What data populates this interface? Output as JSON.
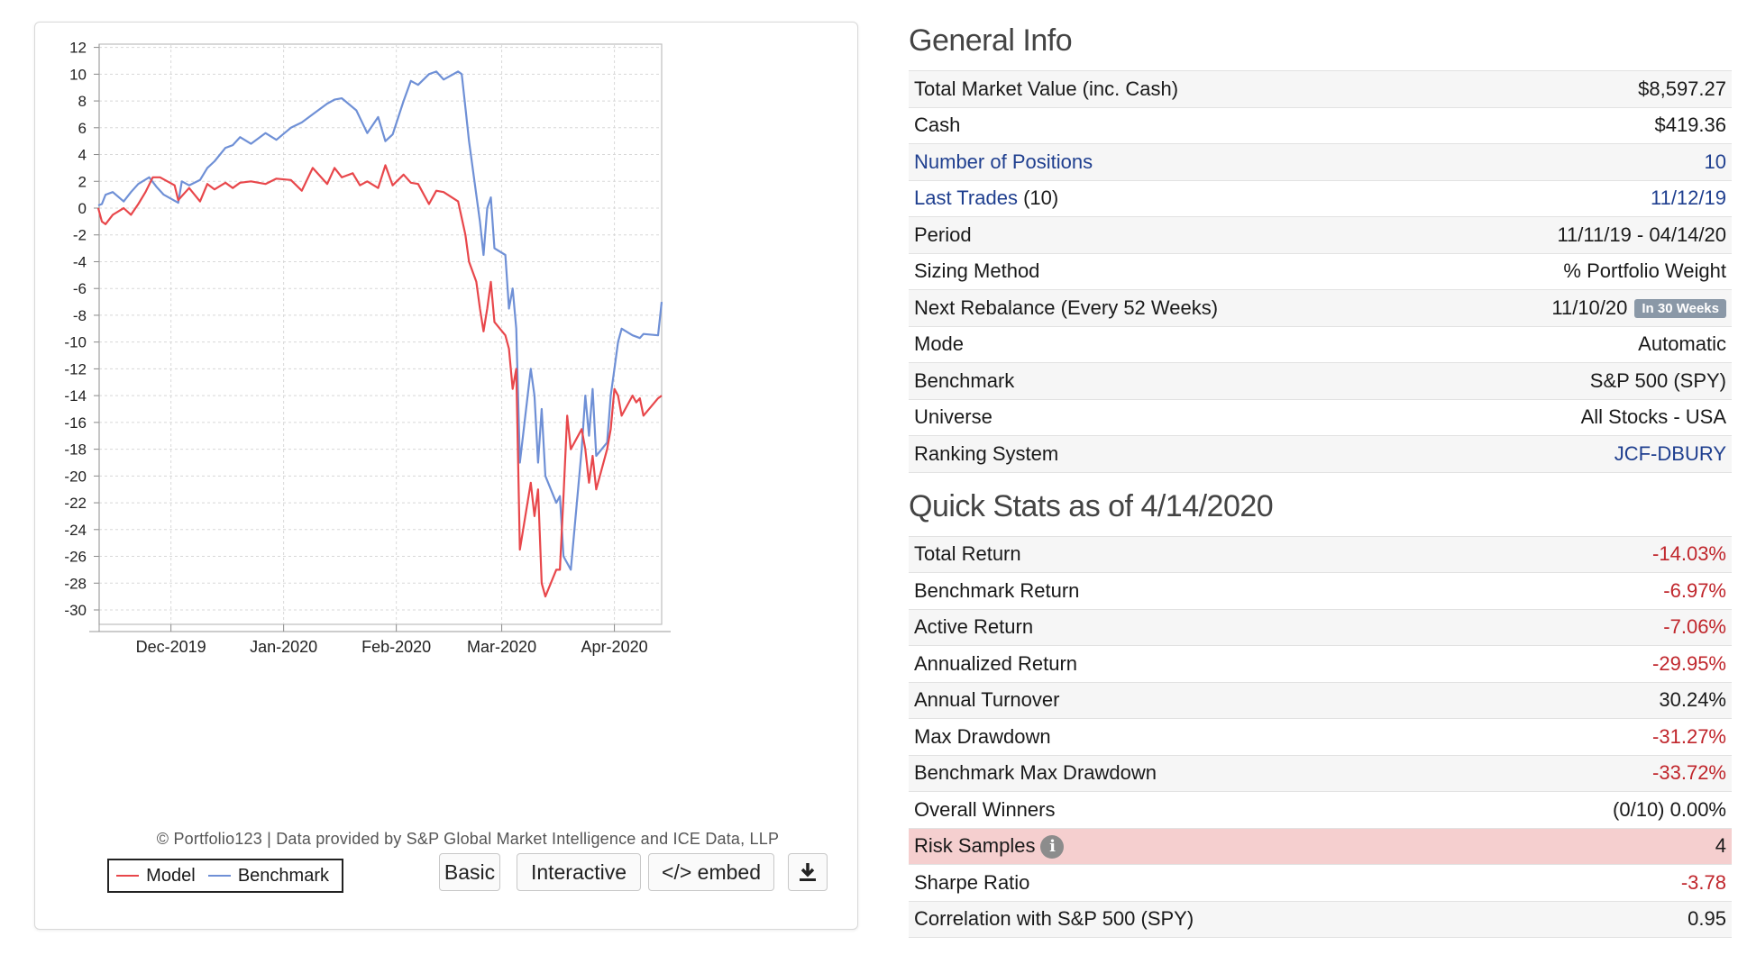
{
  "chart_data": {
    "type": "line",
    "ylim": [
      -30,
      12
    ],
    "yticks": [
      12,
      10,
      8,
      6,
      4,
      2,
      0,
      -2,
      -4,
      -6,
      -8,
      -10,
      -12,
      -14,
      -16,
      -18,
      -20,
      -22,
      -24,
      -26,
      -28,
      -30
    ],
    "xlim": [
      "2019-11-11",
      "2020-04-14"
    ],
    "xticks": [
      {
        "date": "2019-12-01",
        "label": "Dec-2019"
      },
      {
        "date": "2020-01-01",
        "label": "Jan-2020"
      },
      {
        "date": "2020-02-01",
        "label": "Feb-2020"
      },
      {
        "date": "2020-03-01",
        "label": "Mar-2020"
      },
      {
        "date": "2020-04-01",
        "label": "Apr-2020"
      }
    ],
    "grid": true,
    "series": [
      {
        "name": "Model",
        "color": "#e8474b",
        "x": [
          "2019-11-11",
          "2019-11-12",
          "2019-11-13",
          "2019-11-15",
          "2019-11-18",
          "2019-11-20",
          "2019-11-22",
          "2019-11-24",
          "2019-11-26",
          "2019-11-28",
          "2019-12-02",
          "2019-12-03",
          "2019-12-06",
          "2019-12-09",
          "2019-12-11",
          "2019-12-13",
          "2019-12-16",
          "2019-12-18",
          "2019-12-20",
          "2019-12-23",
          "2019-12-27",
          "2019-12-30",
          "2020-01-03",
          "2020-01-06",
          "2020-01-09",
          "2020-01-13",
          "2020-01-15",
          "2020-01-17",
          "2020-01-20",
          "2020-01-22",
          "2020-01-24",
          "2020-01-27",
          "2020-01-29",
          "2020-01-31",
          "2020-02-03",
          "2020-02-05",
          "2020-02-07",
          "2020-02-10",
          "2020-02-12",
          "2020-02-14",
          "2020-02-18",
          "2020-02-20",
          "2020-02-21",
          "2020-02-23",
          "2020-02-24",
          "2020-02-25",
          "2020-02-26",
          "2020-02-27",
          "2020-02-28",
          "2020-03-02",
          "2020-03-03",
          "2020-03-04",
          "2020-03-05",
          "2020-03-06",
          "2020-03-09",
          "2020-03-10",
          "2020-03-11",
          "2020-03-12",
          "2020-03-13",
          "2020-03-16",
          "2020-03-17",
          "2020-03-18",
          "2020-03-19",
          "2020-03-20",
          "2020-03-23",
          "2020-03-24",
          "2020-03-25",
          "2020-03-26",
          "2020-03-27",
          "2020-03-30",
          "2020-03-31",
          "2020-04-01",
          "2020-04-02",
          "2020-04-03",
          "2020-04-06",
          "2020-04-07",
          "2020-04-08",
          "2020-04-09",
          "2020-04-13",
          "2020-04-14"
        ],
        "values": [
          0,
          -1.0,
          -1.2,
          -0.5,
          0,
          -0.5,
          0.3,
          1.2,
          2.3,
          2.3,
          1.7,
          0.6,
          1.5,
          0.5,
          1.8,
          1.4,
          1.9,
          1.5,
          1.9,
          2.0,
          1.8,
          2.2,
          2.1,
          1.3,
          3.0,
          1.8,
          3.0,
          2.3,
          2.6,
          1.7,
          2.0,
          1.5,
          3.2,
          1.7,
          2.5,
          1.9,
          1.8,
          0.3,
          1.3,
          1.2,
          0.5,
          -2.0,
          -4.0,
          -5.5,
          -7.5,
          -9.2,
          -7.5,
          -5.5,
          -8.5,
          -9.5,
          -10.5,
          -13.5,
          -12.0,
          -25.5,
          -20.5,
          -23.0,
          -21.0,
          -28.0,
          -29.0,
          -27.0,
          -27.0,
          -21.5,
          -15.5,
          -18.0,
          -16.5,
          -18.0,
          -20.5,
          -18.5,
          -21.0,
          -18.0,
          -16.5,
          -13.5,
          -14.0,
          -15.5,
          -14.0,
          -14.5,
          -14.2,
          -15.5,
          -14.2,
          -14.0
        ]
      },
      {
        "name": "Benchmark",
        "color": "#6f90d6",
        "x": [
          "2019-11-11",
          "2019-11-12",
          "2019-11-13",
          "2019-11-15",
          "2019-11-18",
          "2019-11-20",
          "2019-11-22",
          "2019-11-25",
          "2019-11-27",
          "2019-11-29",
          "2019-12-03",
          "2019-12-04",
          "2019-12-06",
          "2019-12-09",
          "2019-12-11",
          "2019-12-13",
          "2019-12-16",
          "2019-12-18",
          "2019-12-20",
          "2019-12-23",
          "2019-12-27",
          "2019-12-30",
          "2020-01-03",
          "2020-01-06",
          "2020-01-09",
          "2020-01-13",
          "2020-01-15",
          "2020-01-17",
          "2020-01-21",
          "2020-01-24",
          "2020-01-27",
          "2020-01-29",
          "2020-01-31",
          "2020-02-03",
          "2020-02-05",
          "2020-02-07",
          "2020-02-10",
          "2020-02-12",
          "2020-02-14",
          "2020-02-18",
          "2020-02-19",
          "2020-02-20",
          "2020-02-21",
          "2020-02-24",
          "2020-02-25",
          "2020-02-26",
          "2020-02-27",
          "2020-02-28",
          "2020-03-02",
          "2020-03-03",
          "2020-03-04",
          "2020-03-05",
          "2020-03-06",
          "2020-03-09",
          "2020-03-10",
          "2020-03-11",
          "2020-03-12",
          "2020-03-13",
          "2020-03-16",
          "2020-03-17",
          "2020-03-18",
          "2020-03-19",
          "2020-03-20",
          "2020-03-23",
          "2020-03-24",
          "2020-03-25",
          "2020-03-26",
          "2020-03-27",
          "2020-03-30",
          "2020-03-31",
          "2020-04-01",
          "2020-04-02",
          "2020-04-03",
          "2020-04-06",
          "2020-04-07",
          "2020-04-08",
          "2020-04-09",
          "2020-04-13",
          "2020-04-14"
        ],
        "values": [
          0.2,
          0.3,
          1.0,
          1.2,
          0.5,
          1.2,
          1.8,
          2.3,
          1.6,
          1.0,
          0.4,
          2.0,
          1.7,
          2.1,
          3.0,
          3.5,
          4.5,
          4.7,
          5.3,
          4.8,
          5.6,
          5.1,
          6.0,
          6.4,
          7.0,
          7.8,
          8.1,
          8.2,
          7.3,
          5.6,
          6.8,
          5.0,
          5.5,
          8.0,
          9.5,
          9.2,
          10.0,
          10.2,
          9.6,
          10.2,
          10.0,
          7.5,
          5.0,
          -1.0,
          -3.5,
          0.0,
          0.8,
          -3.0,
          -3.5,
          -7.5,
          -6.0,
          -9.0,
          -19.0,
          -12.0,
          -14.0,
          -19.0,
          -15.0,
          -20.0,
          -22.0,
          -21.5,
          -26.0,
          -26.5,
          -27.0,
          -18.0,
          -14.0,
          -17.0,
          -13.5,
          -18.5,
          -17.5,
          -14.0,
          -12.0,
          -10.0,
          -9.0,
          -9.5,
          -9.6,
          -9.7,
          -9.4,
          -9.5,
          -7.0
        ]
      }
    ]
  },
  "credit": "© Portfolio123 | Data provided by S&P Global Market Intelligence and ICE Data, LLP",
  "legend": {
    "model": "Model",
    "benchmark": "Benchmark"
  },
  "buttons": {
    "basic": "Basic",
    "interactive": "Interactive",
    "embed": "</> embed",
    "download_icon": "download-icon"
  },
  "general": {
    "title": "General Info",
    "rows": [
      {
        "label": "Total Market Value (inc. Cash)",
        "value": "$8,597.27"
      },
      {
        "label": "Cash",
        "value": "$419.36"
      },
      {
        "label": "Number of Positions",
        "value": "10"
      },
      {
        "label": "Last Trades",
        "label_suffix": "(10)",
        "value": "11/12/19"
      },
      {
        "label": "Period",
        "value": "11/11/19 - 04/14/20"
      },
      {
        "label": "Sizing Method",
        "value": "% Portfolio Weight"
      },
      {
        "label": "Next Rebalance (Every 52 Weeks)",
        "value": "11/10/20",
        "badge": "In 30 Weeks"
      },
      {
        "label": "Mode",
        "value": "Automatic"
      },
      {
        "label": "Benchmark",
        "value": "S&P 500 (SPY)"
      },
      {
        "label": "Universe",
        "value": "All Stocks - USA"
      },
      {
        "label": "Ranking System",
        "value": "JCF-DBURY"
      }
    ]
  },
  "quick": {
    "title": "Quick Stats as of 4/14/2020",
    "rows": [
      {
        "label": "Total Return",
        "value": "-14.03%"
      },
      {
        "label": "Benchmark Return",
        "value": "-6.97%"
      },
      {
        "label": "Active Return",
        "value": "-7.06%"
      },
      {
        "label": "Annualized Return",
        "value": "-29.95%"
      },
      {
        "label": "Annual Turnover",
        "value": "30.24%"
      },
      {
        "label": "Max Drawdown",
        "value": "-31.27%"
      },
      {
        "label": "Benchmark Max Drawdown",
        "value": "-33.72%"
      },
      {
        "label": "Overall Winners",
        "value": "(0/10) 0.00%"
      },
      {
        "label": "Risk Samples",
        "value": "4",
        "icon": "i"
      },
      {
        "label": "Sharpe Ratio",
        "value": "-3.78"
      },
      {
        "label": "Correlation with S&P 500 (SPY)",
        "value": "0.95"
      }
    ]
  },
  "colors": {
    "negative": "#c0262c",
    "link": "#1f3f8f",
    "highlight_row": "#f5cfcf",
    "badge": "#8a98a7"
  }
}
